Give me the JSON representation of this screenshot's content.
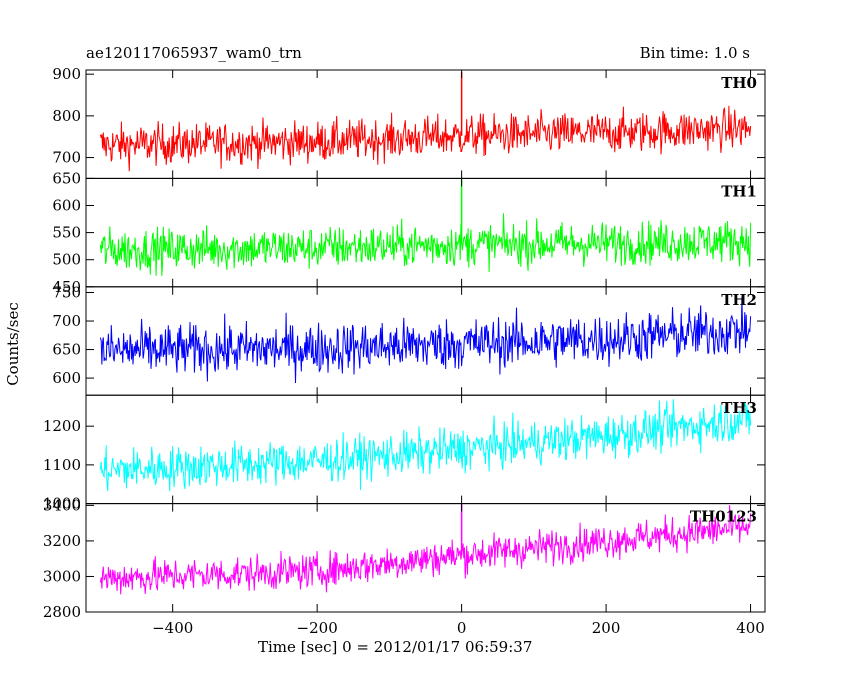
{
  "chart_data": {
    "type": "line",
    "title": "ae120117065937_wam0_trn",
    "bin_time_label": "Bin time: 1.0 s",
    "xlabel": "Time [sec] 0 = 2012/01/17 06:59:37",
    "ylabel": "Counts/sec",
    "xlim": [
      -520,
      420
    ],
    "x_ticks": [
      -400,
      -200,
      0,
      200,
      400
    ],
    "x_tick_labels": [
      "−400",
      "−200",
      "0",
      "200",
      "400"
    ],
    "x_data_range": [
      -500,
      400
    ],
    "panels": [
      {
        "name": "TH0",
        "color": "#ff0000",
        "ylim": [
          650,
          910
        ],
        "y_ticks": [
          650,
          700,
          800,
          900
        ],
        "y_tick_labels": [
          "650",
          "700",
          "800",
          "900"
        ],
        "trend": [
          [
            -500,
            730
          ],
          [
            -200,
            738
          ],
          [
            0,
            752
          ],
          [
            200,
            760
          ],
          [
            400,
            770
          ]
        ],
        "noise": 35,
        "spikes": [
          [
            0,
            905
          ]
        ]
      },
      {
        "name": "TH1",
        "color": "#00ff00",
        "ylim": [
          450,
          650
        ],
        "y_ticks": [
          450,
          500,
          550,
          600
        ],
        "y_tick_labels": [
          "450",
          "500",
          "550",
          "600"
        ],
        "trend": [
          [
            -500,
            518
          ],
          [
            -200,
            522
          ],
          [
            0,
            528
          ],
          [
            200,
            530
          ],
          [
            400,
            535
          ]
        ],
        "noise": 28,
        "spikes": [
          [
            0,
            648
          ]
        ]
      },
      {
        "name": "TH2",
        "color": "#0000ff",
        "ylim": [
          570,
          760
        ],
        "y_ticks": [
          600,
          650,
          700,
          750
        ],
        "y_tick_labels": [
          "600",
          "650",
          "700",
          "750"
        ],
        "trend": [
          [
            -500,
            648
          ],
          [
            -200,
            652
          ],
          [
            0,
            660
          ],
          [
            200,
            668
          ],
          [
            400,
            685
          ]
        ],
        "noise": 32,
        "spikes": []
      },
      {
        "name": "TH3",
        "color": "#00ffff",
        "ylim": [
          1000,
          1280
        ],
        "y_ticks": [
          1000,
          1100,
          1200
        ],
        "y_tick_labels": [
          "1000",
          "1100",
          "1200"
        ],
        "trend": [
          [
            -500,
            1085
          ],
          [
            -200,
            1110
          ],
          [
            0,
            1140
          ],
          [
            200,
            1175
          ],
          [
            400,
            1220
          ]
        ],
        "noise": 40,
        "spikes": []
      },
      {
        "name": "TH0123",
        "color": "#ff00ff",
        "ylim": [
          2800,
          3410
        ],
        "y_ticks": [
          2800,
          3000,
          3200,
          3400
        ],
        "y_tick_labels": [
          "2800",
          "3000",
          "3200",
          "3400"
        ],
        "trend": [
          [
            -500,
            2990
          ],
          [
            -200,
            3030
          ],
          [
            0,
            3120
          ],
          [
            200,
            3200
          ],
          [
            400,
            3280
          ]
        ],
        "noise": 70,
        "spikes": [
          [
            0,
            3410
          ]
        ]
      }
    ]
  }
}
